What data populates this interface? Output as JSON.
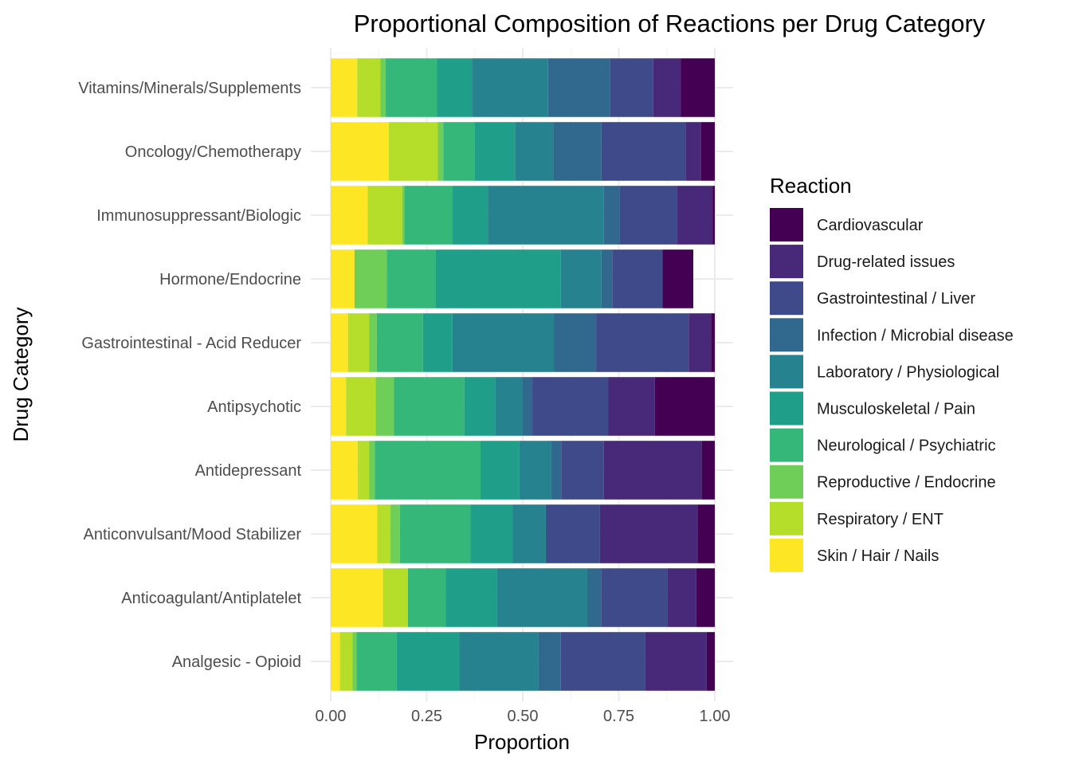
{
  "chart_data": {
    "type": "bar",
    "orientation": "horizontal",
    "stacked": true,
    "title": "Proportional Composition of Reactions per Drug Category",
    "xlabel": "Proportion",
    "ylabel": "Drug Category",
    "xlim": [
      0,
      1
    ],
    "xticks": [
      "0.00",
      "0.25",
      "0.50",
      "0.75",
      "1.00"
    ],
    "legend_title": "Reaction",
    "legend_position": "right",
    "categories": [
      "Vitamins/Minerals/Supplements",
      "Oncology/Chemotherapy",
      "Immunosuppressant/Biologic",
      "Hormone/Endocrine",
      "Gastrointestinal - Acid Reducer",
      "Antipsychotic",
      "Antidepressant",
      "Anticonvulsant/Mood Stabilizer",
      "Anticoagulant/Antiplatelet",
      "Analgesic - Opioid"
    ],
    "series": [
      {
        "name": "Skin / Hair / Nails",
        "color": "#FDE725",
        "values": [
          0.069,
          0.151,
          0.096,
          0.062,
          0.045,
          0.04,
          0.07,
          0.121,
          0.136,
          0.024
        ]
      },
      {
        "name": "Respiratory / ENT",
        "color": "#B5DE2B",
        "values": [
          0.06,
          0.128,
          0.09,
          0.0,
          0.055,
          0.077,
          0.03,
          0.034,
          0.065,
          0.033
        ]
      },
      {
        "name": "Reproductive / Endocrine",
        "color": "#6ECE58",
        "values": [
          0.014,
          0.014,
          0.006,
          0.084,
          0.02,
          0.048,
          0.015,
          0.025,
          0.0,
          0.01
        ]
      },
      {
        "name": "Neurological / Psychiatric",
        "color": "#35B779",
        "values": [
          0.134,
          0.081,
          0.124,
          0.127,
          0.12,
          0.183,
          0.275,
          0.184,
          0.098,
          0.105
        ]
      },
      {
        "name": "Musculoskeletal / Pain",
        "color": "#1F9E89",
        "values": [
          0.091,
          0.106,
          0.093,
          0.326,
          0.077,
          0.08,
          0.101,
          0.11,
          0.133,
          0.163
        ]
      },
      {
        "name": "Laboratory / Physiological",
        "color": "#26828E",
        "values": [
          0.198,
          0.1,
          0.302,
          0.106,
          0.264,
          0.072,
          0.082,
          0.086,
          0.236,
          0.205
        ]
      },
      {
        "name": "Infection / Microbial disease",
        "color": "#31688E",
        "values": [
          0.162,
          0.125,
          0.042,
          0.028,
          0.11,
          0.025,
          0.027,
          0.0,
          0.036,
          0.059
        ]
      },
      {
        "name": "Gastrointestinal / Liver",
        "color": "#3E4A89",
        "values": [
          0.112,
          0.219,
          0.148,
          0.131,
          0.241,
          0.198,
          0.111,
          0.141,
          0.172,
          0.219
        ]
      },
      {
        "name": "Drug-related issues",
        "color": "#482878",
        "values": [
          0.071,
          0.04,
          0.093,
          0.0,
          0.058,
          0.121,
          0.255,
          0.254,
          0.076,
          0.161
        ]
      },
      {
        "name": "Cardiovascular",
        "color": "#440154",
        "values": [
          0.089,
          0.036,
          0.006,
          0.08,
          0.01,
          0.156,
          0.034,
          0.045,
          0.048,
          0.021
        ]
      }
    ]
  }
}
